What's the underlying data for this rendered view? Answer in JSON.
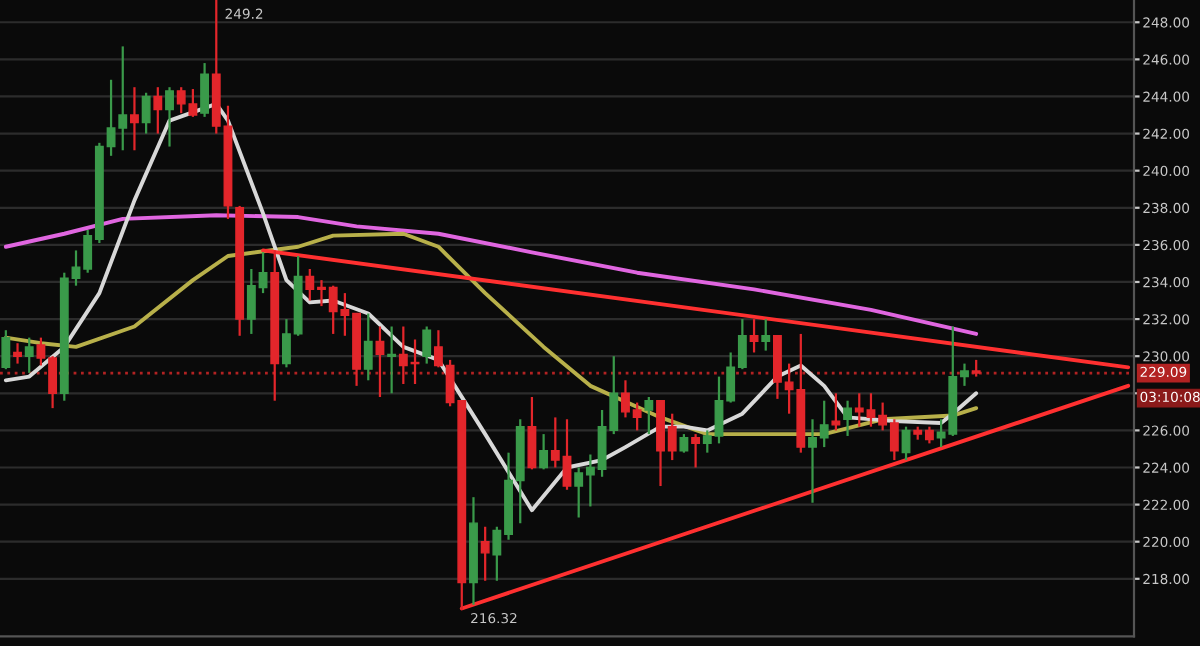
{
  "chart_data": {
    "type": "candlestick",
    "categories": [
      null,
      null,
      null,
      null,
      null,
      null,
      null,
      null,
      null,
      null,
      null,
      null,
      null,
      null,
      null,
      null,
      null,
      null,
      null,
      null,
      null,
      null,
      null,
      null,
      null,
      null,
      null,
      null,
      null,
      null,
      null,
      null,
      null,
      null,
      null,
      null,
      null,
      null,
      null,
      null,
      null,
      null,
      null,
      null,
      null,
      null,
      null,
      null,
      null,
      null,
      null,
      null,
      null,
      null,
      null,
      null,
      null,
      null,
      null,
      null,
      null,
      null,
      null,
      null,
      null,
      null,
      null,
      null,
      null,
      null,
      null,
      null,
      null,
      null,
      null,
      null,
      null,
      null,
      null,
      null,
      null,
      null,
      null,
      null,
      null,
      null,
      null,
      null,
      null,
      null,
      null,
      null,
      null,
      null,
      null,
      null,
      null
    ],
    "ylim": [
      214.9,
      249.2
    ],
    "yticks": [
      {
        "value": 218,
        "label": "218.00"
      },
      {
        "value": 220,
        "label": "220.00"
      },
      {
        "value": 222,
        "label": "222.00"
      },
      {
        "value": 224,
        "label": "224.00"
      },
      {
        "value": 226,
        "label": "226.00"
      },
      {
        "value": 228,
        "label": null
      },
      {
        "value": 230,
        "label": "230.00"
      },
      {
        "value": 232,
        "label": "232.00"
      },
      {
        "value": 234,
        "label": "234.00"
      },
      {
        "value": 236,
        "label": "236.00"
      },
      {
        "value": 238,
        "label": "238.00"
      },
      {
        "value": 240,
        "label": "240.00"
      },
      {
        "value": 242,
        "label": "242.00"
      },
      {
        "value": 244,
        "label": "244.00"
      },
      {
        "value": 246,
        "label": "246.00"
      },
      {
        "value": 248,
        "label": "248.00"
      }
    ],
    "grid": "y",
    "tick_labels": "y",
    "series": [
      {
        "type": "line",
        "color": "#e066e0",
        "values": [
          235.9,
          null,
          null,
          null,
          null,
          236.6,
          null,
          null,
          null,
          null,
          237.4,
          null,
          null,
          null,
          null,
          null,
          null,
          null,
          237.6,
          null,
          null,
          null,
          null,
          null,
          null,
          237.5,
          null,
          null,
          null,
          null,
          237.0,
          null,
          null,
          null,
          null,
          null,
          null,
          236.6,
          null,
          null,
          null,
          null,
          null,
          null,
          null,
          235.6,
          null,
          null,
          null,
          null,
          null,
          null,
          null,
          null,
          234.5,
          null,
          null,
          null,
          null,
          null,
          null,
          null,
          null,
          null,
          233.6,
          null,
          null,
          null,
          null,
          null,
          null,
          null,
          null,
          null,
          232.5,
          null,
          null,
          null,
          null,
          null,
          null,
          null,
          null,
          231.2,
          null,
          null,
          null,
          null,
          null,
          null,
          null,
          null,
          null,
          null,
          null,
          null,
          null
        ]
      },
      {
        "type": "line",
        "color": "#b8b04a",
        "values": [
          231.0,
          null,
          null,
          230.7,
          null,
          null,
          230.5,
          null,
          null,
          null,
          null,
          231.6,
          null,
          null,
          null,
          null,
          234.1,
          null,
          null,
          235.4,
          null,
          null,
          null,
          null,
          null,
          235.9,
          null,
          null,
          236.5,
          null,
          null,
          null,
          null,
          null,
          236.6,
          null,
          null,
          235.9,
          null,
          null,
          null,
          233.4,
          null,
          null,
          null,
          null,
          230.5,
          null,
          null,
          null,
          228.4,
          null,
          null,
          null,
          null,
          null,
          226.7,
          null,
          null,
          null,
          225.8,
          null,
          null,
          null,
          null,
          null,
          225.8,
          null,
          null,
          null,
          225.8,
          null,
          null,
          null,
          null,
          226.6,
          null,
          null,
          null,
          null,
          null,
          226.8,
          null,
          227.2,
          null,
          null,
          null,
          null,
          null,
          null,
          null,
          null,
          null,
          null,
          null,
          null,
          null
        ]
      },
      {
        "type": "line",
        "color": "#d8d8d8",
        "values": [
          228.7,
          null,
          228.9,
          null,
          null,
          230.5,
          null,
          null,
          233.4,
          null,
          null,
          238.4,
          null,
          null,
          242.7,
          null,
          null,
          null,
          243.6,
          242.7,
          null,
          null,
          237.7,
          null,
          234.1,
          null,
          232.9,
          null,
          233.0,
          null,
          null,
          232.3,
          null,
          null,
          230.5,
          null,
          null,
          229.8,
          null,
          null,
          null,
          225.8,
          null,
          null,
          null,
          221.7,
          null,
          null,
          224.0,
          null,
          null,
          224.4,
          null,
          225.1,
          null,
          null,
          226.2,
          null,
          226.2,
          null,
          226.0,
          null,
          null,
          226.9,
          null,
          null,
          228.9,
          null,
          229.5,
          null,
          228.4,
          null,
          226.7,
          null,
          null,
          null,
          226.5,
          null,
          null,
          null,
          226.4,
          226.9,
          null,
          228.0,
          null,
          null,
          null,
          null,
          null,
          null,
          null,
          null,
          null,
          null,
          null,
          null,
          null
        ]
      },
      {
        "type": "line",
        "color": "#ff3030",
        "values": [
          null,
          null,
          null,
          null,
          null,
          null,
          null,
          null,
          null,
          null,
          null,
          null,
          null,
          null,
          null,
          null,
          null,
          null,
          null,
          null,
          null,
          null,
          235.7,
          null,
          null,
          null,
          null,
          null,
          null,
          null,
          null,
          null,
          null,
          null,
          null,
          null,
          null,
          null,
          null,
          null,
          null,
          null,
          null,
          null,
          null,
          null,
          null,
          null,
          null,
          null,
          null,
          null,
          null,
          null,
          null,
          null,
          null,
          null,
          null,
          null,
          null,
          null,
          null,
          null,
          null,
          null,
          null,
          null,
          null,
          null,
          null,
          null,
          null,
          null,
          null,
          null,
          null,
          null,
          null,
          null,
          null,
          null,
          null,
          null,
          null,
          null,
          null,
          null,
          null,
          null,
          null,
          null,
          null,
          null,
          null,
          null,
          229.4
        ]
      },
      {
        "type": "line",
        "color": "#ff3030",
        "values": [
          null,
          null,
          null,
          null,
          null,
          null,
          null,
          null,
          null,
          null,
          null,
          null,
          null,
          null,
          null,
          null,
          null,
          null,
          null,
          null,
          null,
          null,
          null,
          null,
          null,
          null,
          null,
          null,
          null,
          null,
          null,
          null,
          null,
          null,
          null,
          null,
          null,
          null,
          null,
          216.4,
          null,
          null,
          null,
          null,
          null,
          null,
          null,
          null,
          null,
          null,
          null,
          null,
          null,
          null,
          null,
          null,
          null,
          null,
          null,
          null,
          null,
          null,
          null,
          null,
          null,
          null,
          null,
          null,
          null,
          null,
          null,
          null,
          null,
          null,
          null,
          null,
          null,
          null,
          null,
          null,
          null,
          null,
          null,
          null,
          null,
          null,
          null,
          null,
          null,
          null,
          null,
          null,
          null,
          null,
          null,
          null,
          228.4
        ]
      },
      {
        "type": "candlestick",
        "colors": [
          "#3a9a4a",
          "#e3262b",
          "#3a9a4a",
          "#e3262b",
          "#e3262b",
          "#3a9a4a",
          "#3a9a4a",
          "#3a9a4a",
          "#3a9a4a",
          "#3a9a4a",
          "#3a9a4a",
          "#e3262b",
          "#3a9a4a",
          "#e3262b",
          "#3a9a4a",
          "#e3262b",
          "#e3262b",
          "#3a9a4a",
          "#e3262b",
          "#e3262b",
          "#e3262b",
          "#3a9a4a",
          "#3a9a4a",
          "#e3262b",
          "#3a9a4a",
          "#3a9a4a",
          "#e3262b",
          "#e3262b",
          "#e3262b",
          "#e3262b",
          "#e3262b",
          "#3a9a4a",
          "#e3262b",
          "#3a9a4a",
          "#e3262b",
          "#e3262b",
          "#3a9a4a",
          "#e3262b",
          "#e3262b",
          "#e3262b",
          "#3a9a4a",
          "#e3262b",
          "#3a9a4a",
          "#3a9a4a",
          "#3a9a4a",
          "#e3262b",
          "#3a9a4a",
          "#e3262b",
          "#e3262b",
          "#3a9a4a",
          "#3a9a4a",
          "#3a9a4a",
          "#3a9a4a",
          "#e3262b",
          "#e3262b",
          "#3a9a4a",
          "#e3262b",
          "#e3262b",
          "#3a9a4a",
          "#e3262b",
          "#3a9a4a",
          "#3a9a4a",
          "#3a9a4a",
          "#3a9a4a",
          "#e3262b",
          "#3a9a4a",
          "#e3262b",
          "#e3262b",
          "#e3262b",
          "#3a9a4a",
          "#3a9a4a",
          "#e3262b",
          "#3a9a4a",
          "#e3262b",
          "#e3262b",
          "#e3262b",
          "#e3262b",
          "#3a9a4a",
          "#e3262b",
          "#e3262b",
          "#3a9a4a",
          "#3a9a4a",
          "#3a9a4a",
          "#e3262b",
          null,
          null,
          null,
          null,
          null,
          null,
          null,
          null,
          null,
          null,
          null,
          null,
          null
        ],
        "ohlc": [
          [
            229.4,
            231.4,
            229.3,
            231.0
          ],
          [
            230.2,
            230.7,
            229.6,
            230.0
          ],
          [
            230.0,
            231.0,
            229.1,
            230.5
          ],
          [
            230.6,
            231.0,
            229.5,
            229.9
          ],
          [
            229.9,
            230.0,
            227.2,
            228.0
          ],
          [
            228.0,
            234.5,
            227.6,
            234.2
          ],
          [
            234.2,
            235.7,
            233.8,
            234.8
          ],
          [
            234.7,
            236.8,
            234.5,
            236.5
          ],
          [
            236.3,
            241.5,
            236.1,
            241.3
          ],
          [
            241.3,
            244.9,
            240.8,
            242.3
          ],
          [
            242.3,
            246.7,
            241.1,
            243.0
          ],
          [
            243.0,
            244.5,
            241.1,
            242.6
          ],
          [
            242.6,
            244.2,
            242.0,
            244.0
          ],
          [
            244.0,
            244.5,
            242.0,
            243.3
          ],
          [
            243.3,
            244.5,
            241.3,
            244.3
          ],
          [
            244.3,
            244.5,
            243.1,
            243.6
          ],
          [
            243.6,
            244.4,
            242.9,
            243.0
          ],
          [
            243.1,
            245.8,
            242.9,
            245.2
          ],
          [
            245.2,
            249.2,
            242.0,
            242.4
          ],
          [
            242.4,
            243.5,
            237.4,
            238.1
          ],
          [
            238.0,
            238.1,
            231.1,
            232.0
          ],
          [
            232.0,
            234.7,
            231.2,
            233.8
          ],
          [
            233.7,
            235.6,
            233.4,
            234.5
          ],
          [
            234.5,
            235.7,
            227.6,
            229.6
          ],
          [
            229.6,
            232.0,
            229.4,
            231.2
          ],
          [
            231.2,
            235.4,
            231.1,
            234.3
          ],
          [
            234.3,
            234.7,
            233.0,
            233.6
          ],
          [
            233.7,
            234.1,
            232.7,
            233.6
          ],
          [
            233.7,
            233.8,
            231.2,
            232.4
          ],
          [
            232.5,
            233.4,
            231.1,
            232.2
          ],
          [
            232.3,
            232.3,
            228.4,
            229.3
          ],
          [
            229.3,
            232.3,
            228.7,
            230.8
          ],
          [
            230.8,
            231.6,
            227.8,
            230.1
          ],
          [
            230.0,
            231.6,
            228.0,
            230.1
          ],
          [
            230.1,
            231.6,
            228.5,
            229.5
          ],
          [
            229.6,
            230.9,
            228.5,
            229.6
          ],
          [
            230.0,
            231.6,
            229.6,
            231.4
          ],
          [
            230.5,
            231.4,
            229.4,
            229.5
          ],
          [
            229.5,
            229.8,
            227.3,
            227.5
          ],
          [
            227.6,
            227.6,
            216.32,
            217.8
          ],
          [
            217.8,
            222.4,
            216.6,
            221.0
          ],
          [
            220.0,
            220.8,
            217.9,
            219.4
          ],
          [
            219.3,
            220.8,
            217.9,
            220.6
          ],
          [
            220.4,
            224.8,
            220.1,
            223.3
          ],
          [
            223.3,
            226.6,
            221.0,
            226.2
          ],
          [
            226.2,
            227.8,
            223.9,
            224.0
          ],
          [
            224.0,
            225.8,
            223.9,
            224.9
          ],
          [
            224.9,
            226.7,
            224.0,
            224.4
          ],
          [
            224.6,
            226.6,
            222.8,
            223.0
          ],
          [
            223.0,
            224.0,
            221.3,
            223.7
          ],
          [
            223.6,
            224.7,
            221.9,
            224.0
          ],
          [
            223.9,
            227.1,
            223.5,
            226.2
          ],
          [
            226.0,
            230.0,
            225.8,
            228.0
          ],
          [
            228.0,
            228.7,
            226.7,
            227.0
          ],
          [
            227.1,
            227.5,
            226.0,
            226.7
          ],
          [
            227.1,
            227.8,
            225.8,
            227.6
          ],
          [
            227.6,
            227.6,
            223.0,
            224.9
          ],
          [
            226.2,
            226.9,
            224.4,
            224.9
          ],
          [
            224.9,
            225.8,
            224.8,
            225.6
          ],
          [
            225.6,
            225.8,
            224.0,
            225.3
          ],
          [
            225.3,
            226.0,
            224.8,
            225.7
          ],
          [
            225.7,
            228.9,
            225.3,
            227.6
          ],
          [
            227.6,
            230.2,
            227.5,
            229.4
          ],
          [
            229.4,
            232.0,
            229.3,
            231.1
          ],
          [
            231.1,
            232.0,
            230.2,
            230.8
          ],
          [
            230.8,
            232.0,
            230.3,
            231.1
          ],
          [
            231.1,
            231.1,
            227.7,
            228.6
          ],
          [
            228.6,
            229.6,
            226.9,
            228.2
          ],
          [
            228.2,
            231.2,
            224.8,
            225.1
          ],
          [
            225.1,
            226.6,
            222.1,
            225.6
          ],
          [
            225.6,
            227.6,
            225.1,
            226.3
          ],
          [
            226.5,
            228.0,
            226.0,
            226.3
          ],
          [
            226.6,
            227.6,
            225.7,
            227.2
          ],
          [
            227.2,
            228.0,
            226.2,
            227.0
          ],
          [
            227.1,
            228.0,
            226.2,
            226.7
          ],
          [
            226.8,
            227.5,
            226.0,
            226.3
          ],
          [
            226.4,
            226.6,
            224.4,
            224.9
          ],
          [
            224.8,
            226.2,
            224.4,
            226.0
          ],
          [
            226.0,
            226.2,
            225.5,
            225.8
          ],
          [
            226.0,
            226.2,
            225.3,
            225.5
          ],
          [
            225.6,
            226.6,
            225.1,
            225.9
          ],
          [
            225.8,
            231.6,
            225.7,
            228.9
          ],
          [
            228.9,
            229.6,
            228.4,
            229.2
          ],
          [
            229.2,
            229.8,
            228.9,
            229.09
          ],
          null,
          null,
          null,
          null,
          null,
          null,
          null,
          null,
          null,
          null,
          null,
          null,
          null
        ]
      }
    ],
    "ref_lines": [
      {
        "axis": "y",
        "value": 229.09,
        "label": "229.09",
        "color": "#b22222",
        "line_style": "dotted"
      }
    ],
    "annotations": [
      "249.2",
      {
        "text": "216.32",
        "y": 216.32
      },
      "03:10:08"
    ]
  }
}
